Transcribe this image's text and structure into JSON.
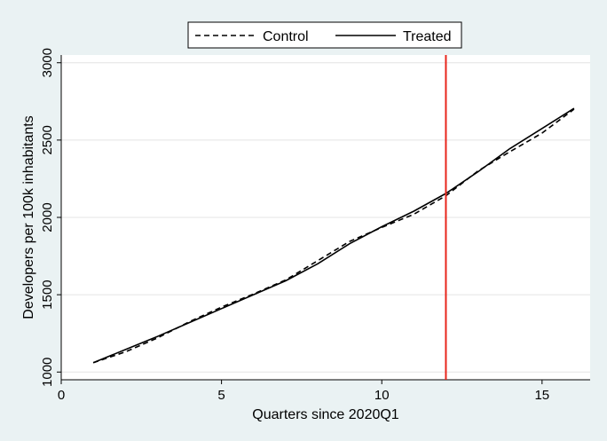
{
  "chart_data": {
    "type": "line",
    "xlabel": "Quarters since 2020Q1",
    "ylabel": "Developers per 100k inhabitants",
    "xlim": [
      0,
      16.5
    ],
    "ylim": [
      950,
      3050
    ],
    "xticks": [
      0,
      5,
      10,
      15
    ],
    "yticks": [
      1000,
      1500,
      2000,
      2500,
      3000
    ],
    "grid": "horizontal",
    "legend_position": "top",
    "vline": {
      "x": 12,
      "color": "#e8251b"
    },
    "series": [
      {
        "name": "Control",
        "style": "dashed",
        "color": "#000000",
        "x": [
          1,
          2,
          3,
          4,
          5,
          6,
          7,
          8,
          9,
          10,
          11,
          12,
          13,
          14,
          15,
          16
        ],
        "y": [
          1060,
          1130,
          1220,
          1325,
          1420,
          1505,
          1595,
          1720,
          1845,
          1935,
          2020,
          2140,
          2300,
          2425,
          2545,
          2700
        ]
      },
      {
        "name": "Treated",
        "style": "solid",
        "color": "#000000",
        "x": [
          1,
          2,
          3,
          4,
          5,
          6,
          7,
          8,
          9,
          10,
          11,
          12,
          13,
          14,
          15,
          16
        ],
        "y": [
          1060,
          1145,
          1230,
          1320,
          1410,
          1500,
          1590,
          1700,
          1830,
          1940,
          2040,
          2155,
          2295,
          2445,
          2575,
          2705
        ]
      }
    ]
  }
}
